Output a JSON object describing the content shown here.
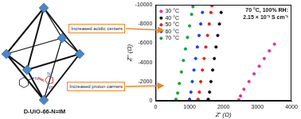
{
  "chart_data": {
    "type": "scatter",
    "x_label": "Z' (Ω)",
    "y_label": "Z'' (Ω)",
    "xlim": [
      0,
      4000
    ],
    "xticks": [
      0,
      1000,
      2000,
      3000,
      4000
    ],
    "ylim": [
      0,
      -10000
    ],
    "yticks": [
      0,
      -2000,
      -4000,
      -6000,
      -8000,
      -10000
    ],
    "grid": false,
    "legend": "upper left",
    "marker": "circle",
    "annotations": [
      "70 °C, 100% RH: 2.15 × 10⁻³ S cm⁻¹"
    ],
    "series": [
      {
        "name": "30 °C",
        "color": "#e0309a",
        "x": [
          2450,
          2500,
          2600,
          2750,
          2900,
          3050,
          3200,
          3350,
          3500
        ],
        "values": [
          -100,
          -500,
          -1200,
          -2000,
          -2800,
          -3600,
          -4400,
          -5200,
          -5900
        ]
      },
      {
        "name": "40 °C",
        "color": "#111111",
        "x": [
          1550,
          1590,
          1630,
          1680,
          1730,
          1780,
          1830,
          1880,
          1930
        ],
        "values": [
          -150,
          -900,
          -2000,
          -3200,
          -4400,
          -5600,
          -6800,
          -8000,
          -9200
        ]
      },
      {
        "name": "50 °C",
        "color": "#e02020",
        "x": [
          1250,
          1290,
          1330,
          1380,
          1430,
          1480,
          1530,
          1580,
          1630,
          1660
        ],
        "values": [
          -150,
          -900,
          -2000,
          -3200,
          -4400,
          -5600,
          -6800,
          -8000,
          -9200,
          -9900
        ]
      },
      {
        "name": "60 °C",
        "color": "#2040e0",
        "x": [
          1000,
          1040,
          1080,
          1130,
          1180,
          1230,
          1280,
          1330,
          1380
        ],
        "values": [
          -150,
          -900,
          -2000,
          -3200,
          -4400,
          -5600,
          -6800,
          -8000,
          -9200
        ]
      },
      {
        "name": "70 °C",
        "color": "#18a040",
        "x": [
          600,
          650,
          700,
          760,
          820,
          880,
          940,
          1000,
          1060,
          1100
        ],
        "values": [
          -150,
          -800,
          -1800,
          -3000,
          -4200,
          -5400,
          -6600,
          -7800,
          -9000,
          -9800
        ]
      }
    ]
  },
  "diagram": {
    "label": "D-UiO-66-N=IM",
    "callouts": [
      "Increased acidic centers",
      "Increased proton carriers"
    ],
    "atoms": [
      "N",
      "N",
      "N",
      "H"
    ]
  }
}
